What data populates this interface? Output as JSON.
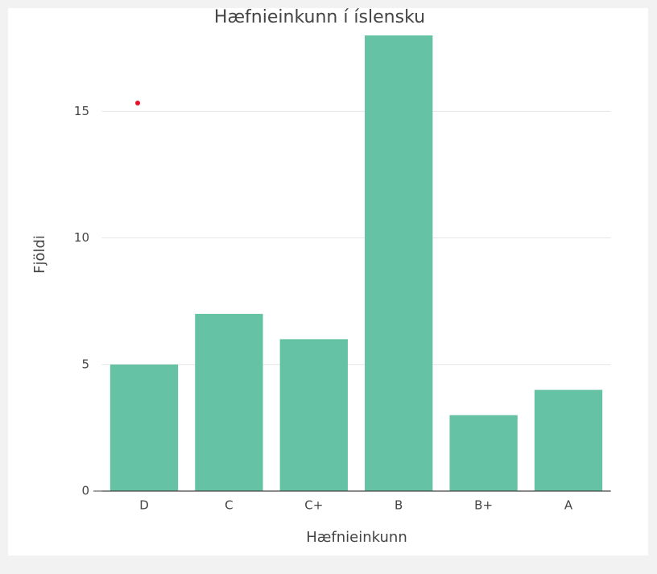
{
  "chart_data": {
    "type": "bar",
    "title": "Hæfnieinkunn í íslensku",
    "x_label": "Hæfnieinkunn",
    "y_label": "Fjöldi",
    "categories": [
      "D",
      "C",
      "C+",
      "B",
      "B+",
      "A"
    ],
    "values": [
      5,
      7,
      6,
      18,
      3,
      4
    ],
    "color": "#66c2a5",
    "ylim": [
      0,
      18
    ],
    "yticks": [
      0,
      5,
      10,
      15
    ],
    "grid": true
  }
}
